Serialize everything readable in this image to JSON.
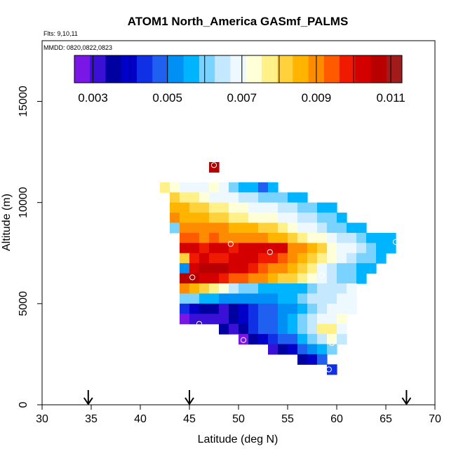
{
  "chart_data": {
    "type": "heatmap",
    "title": "ATOM1 North_America GASmf_PALMS",
    "flights_label": "Flts: 9,10,11",
    "dates_label": "MMDD: 0820,0822,0823",
    "xlabel": "Latitude (deg N)",
    "ylabel": "Altitude (m)",
    "xlim": [
      30,
      70
    ],
    "ylim": [
      0,
      18000
    ],
    "x_ticks": [
      "30",
      "35",
      "40",
      "45",
      "50",
      "55",
      "60",
      "65",
      "70"
    ],
    "y_ticks": [
      "0",
      "5000",
      "10000",
      "15000"
    ],
    "colorbar": {
      "min": 0.0025,
      "max": 0.0113,
      "tick_values": [
        0.003,
        0.005,
        0.007,
        0.009,
        0.011
      ],
      "tick_labels": [
        "0.003",
        "0.005",
        "0.007",
        "0.009",
        "0.011"
      ],
      "colors": [
        "#7a16e6",
        "#3a0fd6",
        "#0000a0",
        "#0000c8",
        "#1030e6",
        "#2060f0",
        "#0090f5",
        "#00b4ff",
        "#7ad2ff",
        "#c4e9ff",
        "#eef8ff",
        "#ffffd8",
        "#fff088",
        "#ffd23c",
        "#ffb400",
        "#ff8c00",
        "#ff5a00",
        "#f01a00",
        "#d40000",
        "#b80000",
        "#a01c1c"
      ]
    },
    "cell_size": {
      "lat": 1.0,
      "alt": 500
    },
    "grid_cells": [
      [
        47.5,
        11750,
        0.0106
      ],
      [
        42.5,
        10750,
        0.0076
      ],
      [
        43.5,
        10750,
        0.0072
      ],
      [
        44.5,
        10750,
        0.007
      ],
      [
        45.5,
        10750,
        0.0068
      ],
      [
        46.5,
        10750,
        0.007
      ],
      [
        47.5,
        10750,
        0.0075
      ],
      [
        48.5,
        10750,
        0.0068
      ],
      [
        49.5,
        10750,
        0.0062
      ],
      [
        50.5,
        10750,
        0.0057
      ],
      [
        51.5,
        10750,
        0.0055
      ],
      [
        52.5,
        10750,
        0.005
      ],
      [
        53.5,
        10750,
        0.0058
      ],
      [
        43.5,
        10250,
        0.0082
      ],
      [
        44.5,
        10250,
        0.0078
      ],
      [
        45.5,
        10250,
        0.0076
      ],
      [
        46.5,
        10250,
        0.0073
      ],
      [
        47.5,
        10250,
        0.0071
      ],
      [
        48.5,
        10250,
        0.0069
      ],
      [
        49.5,
        10250,
        0.0068
      ],
      [
        50.5,
        10250,
        0.0066
      ],
      [
        51.5,
        10250,
        0.0064
      ],
      [
        52.5,
        10250,
        0.0062
      ],
      [
        53.5,
        10250,
        0.0061
      ],
      [
        54.5,
        10250,
        0.0059
      ],
      [
        55.5,
        10250,
        0.0057
      ],
      [
        56.5,
        10250,
        0.0057
      ],
      [
        43.5,
        9750,
        0.0086
      ],
      [
        44.5,
        9750,
        0.0084
      ],
      [
        45.5,
        9750,
        0.0082
      ],
      [
        46.5,
        9750,
        0.008
      ],
      [
        47.5,
        9750,
        0.0078
      ],
      [
        48.5,
        9750,
        0.0076
      ],
      [
        49.5,
        9750,
        0.0074
      ],
      [
        50.5,
        9750,
        0.0072
      ],
      [
        51.5,
        9750,
        0.007
      ],
      [
        52.5,
        9750,
        0.0069
      ],
      [
        53.5,
        9750,
        0.0067
      ],
      [
        54.5,
        9750,
        0.0065
      ],
      [
        55.5,
        9750,
        0.0063
      ],
      [
        56.5,
        9750,
        0.0061
      ],
      [
        57.5,
        9750,
        0.006
      ],
      [
        58.5,
        9750,
        0.0058
      ],
      [
        59.5,
        9750,
        0.0056
      ],
      [
        43.5,
        9250,
        0.0088
      ],
      [
        44.5,
        9250,
        0.0087
      ],
      [
        45.5,
        9250,
        0.0085
      ],
      [
        46.5,
        9250,
        0.0084
      ],
      [
        47.5,
        9250,
        0.0082
      ],
      [
        48.5,
        9250,
        0.008
      ],
      [
        49.5,
        9250,
        0.0078
      ],
      [
        50.5,
        9250,
        0.0077
      ],
      [
        51.5,
        9250,
        0.0075
      ],
      [
        52.5,
        9250,
        0.0073
      ],
      [
        53.5,
        9250,
        0.0072
      ],
      [
        54.5,
        9250,
        0.007
      ],
      [
        55.5,
        9250,
        0.0068
      ],
      [
        56.5,
        9250,
        0.0066
      ],
      [
        57.5,
        9250,
        0.0064
      ],
      [
        58.5,
        9250,
        0.0062
      ],
      [
        59.5,
        9250,
        0.006
      ],
      [
        60.5,
        9250,
        0.0058
      ],
      [
        43.5,
        8750,
        0.006
      ],
      [
        44.5,
        8750,
        0.009
      ],
      [
        45.5,
        8750,
        0.0091
      ],
      [
        46.5,
        8750,
        0.009
      ],
      [
        47.5,
        8750,
        0.0089
      ],
      [
        48.5,
        8750,
        0.0088
      ],
      [
        49.5,
        8750,
        0.0087
      ],
      [
        50.5,
        8750,
        0.0086
      ],
      [
        51.5,
        8750,
        0.0085
      ],
      [
        52.5,
        8750,
        0.0082
      ],
      [
        53.5,
        8750,
        0.008
      ],
      [
        54.5,
        8750,
        0.0077
      ],
      [
        55.5,
        8750,
        0.0074
      ],
      [
        56.5,
        8750,
        0.0071
      ],
      [
        57.5,
        8750,
        0.0068
      ],
      [
        58.5,
        8750,
        0.0065
      ],
      [
        59.5,
        8750,
        0.0062
      ],
      [
        60.5,
        8750,
        0.0059
      ],
      [
        61.5,
        8750,
        0.0056
      ],
      [
        62.5,
        8750,
        0.0055
      ],
      [
        44.5,
        8250,
        0.0094
      ],
      [
        45.5,
        8250,
        0.0093
      ],
      [
        46.5,
        8250,
        0.0092
      ],
      [
        47.5,
        8250,
        0.0093
      ],
      [
        48.5,
        8250,
        0.0092
      ],
      [
        49.5,
        8250,
        0.0091
      ],
      [
        50.5,
        8250,
        0.009
      ],
      [
        51.5,
        8250,
        0.0089
      ],
      [
        52.5,
        8250,
        0.0088
      ],
      [
        53.5,
        8250,
        0.0086
      ],
      [
        54.5,
        8250,
        0.0084
      ],
      [
        55.5,
        8250,
        0.0081
      ],
      [
        56.5,
        8250,
        0.0078
      ],
      [
        57.5,
        8250,
        0.0075
      ],
      [
        58.5,
        8250,
        0.0072
      ],
      [
        59.5,
        8250,
        0.0069
      ],
      [
        60.5,
        8250,
        0.0066
      ],
      [
        61.5,
        8250,
        0.0063
      ],
      [
        62.5,
        8250,
        0.006
      ],
      [
        63.5,
        8250,
        0.0058
      ],
      [
        64.5,
        8250,
        0.0057
      ],
      [
        65.5,
        8250,
        0.0057
      ],
      [
        44.5,
        7750,
        0.0103
      ],
      [
        45.5,
        7750,
        0.0102
      ],
      [
        46.5,
        7750,
        0.01
      ],
      [
        47.5,
        7750,
        0.0102
      ],
      [
        48.5,
        7750,
        0.0101
      ],
      [
        49.5,
        7750,
        0.01
      ],
      [
        50.5,
        7750,
        0.0103
      ],
      [
        51.5,
        7750,
        0.0102
      ],
      [
        52.5,
        7750,
        0.0104
      ],
      [
        53.5,
        7750,
        0.0103
      ],
      [
        54.5,
        7750,
        0.0101
      ],
      [
        55.5,
        7750,
        0.0092
      ],
      [
        56.5,
        7750,
        0.0088
      ],
      [
        57.5,
        7750,
        0.0084
      ],
      [
        58.5,
        7750,
        0.008
      ],
      [
        59.5,
        7750,
        0.0075
      ],
      [
        60.5,
        7750,
        0.0071
      ],
      [
        61.5,
        7750,
        0.0067
      ],
      [
        62.5,
        7750,
        0.0063
      ],
      [
        63.5,
        7750,
        0.006
      ],
      [
        64.5,
        7750,
        0.0058
      ],
      [
        65.5,
        7750,
        0.0057
      ],
      [
        44.5,
        7250,
        0.008
      ],
      [
        45.5,
        7250,
        0.01
      ],
      [
        46.5,
        7250,
        0.0101
      ],
      [
        47.5,
        7250,
        0.01
      ],
      [
        48.5,
        7250,
        0.01
      ],
      [
        49.5,
        7250,
        0.0101
      ],
      [
        50.5,
        7250,
        0.0104
      ],
      [
        51.5,
        7250,
        0.0102
      ],
      [
        52.5,
        7250,
        0.01
      ],
      [
        53.5,
        7250,
        0.0098
      ],
      [
        54.5,
        7250,
        0.0095
      ],
      [
        55.5,
        7250,
        0.009
      ],
      [
        56.5,
        7250,
        0.0086
      ],
      [
        57.5,
        7250,
        0.0082
      ],
      [
        58.5,
        7250,
        0.0077
      ],
      [
        59.5,
        7250,
        0.0073
      ],
      [
        60.5,
        7250,
        0.0069
      ],
      [
        61.5,
        7250,
        0.0065
      ],
      [
        62.5,
        7250,
        0.0062
      ],
      [
        63.5,
        7250,
        0.0059
      ],
      [
        64.5,
        7250,
        0.0057
      ],
      [
        44.5,
        6750,
        0.0052
      ],
      [
        45.5,
        6750,
        0.0104
      ],
      [
        46.5,
        6750,
        0.0106
      ],
      [
        47.5,
        6750,
        0.0107
      ],
      [
        48.5,
        6750,
        0.0106
      ],
      [
        49.5,
        6750,
        0.0104
      ],
      [
        50.5,
        6750,
        0.0102
      ],
      [
        51.5,
        6750,
        0.01
      ],
      [
        52.5,
        6750,
        0.0096
      ],
      [
        53.5,
        6750,
        0.0092
      ],
      [
        54.5,
        6750,
        0.009
      ],
      [
        55.5,
        6750,
        0.0086
      ],
      [
        56.5,
        6750,
        0.0081
      ],
      [
        57.5,
        6750,
        0.0076
      ],
      [
        58.5,
        6750,
        0.0071
      ],
      [
        59.5,
        6750,
        0.0066
      ],
      [
        60.5,
        6750,
        0.0062
      ],
      [
        61.5,
        6750,
        0.0059
      ],
      [
        62.5,
        6750,
        0.0057
      ],
      [
        63.5,
        6750,
        0.0056
      ],
      [
        44.5,
        6250,
        0.0108
      ],
      [
        45.5,
        6250,
        0.0105
      ],
      [
        46.5,
        6250,
        0.0103
      ],
      [
        47.5,
        6250,
        0.0101
      ],
      [
        48.5,
        6250,
        0.0099
      ],
      [
        49.5,
        6250,
        0.0096
      ],
      [
        50.5,
        6250,
        0.0094
      ],
      [
        51.5,
        6250,
        0.0092
      ],
      [
        52.5,
        6250,
        0.0089
      ],
      [
        53.5,
        6250,
        0.0086
      ],
      [
        54.5,
        6250,
        0.0083
      ],
      [
        55.5,
        6250,
        0.008
      ],
      [
        56.5,
        6250,
        0.0076
      ],
      [
        57.5,
        6250,
        0.0072
      ],
      [
        58.5,
        6250,
        0.0068
      ],
      [
        59.5,
        6250,
        0.0065
      ],
      [
        60.5,
        6250,
        0.0062
      ],
      [
        61.5,
        6250,
        0.006
      ],
      [
        62.5,
        6250,
        0.0058
      ],
      [
        44.5,
        5750,
        0.009
      ],
      [
        45.5,
        5750,
        0.0087
      ],
      [
        46.5,
        5750,
        0.0083
      ],
      [
        47.5,
        5750,
        0.0078
      ],
      [
        48.5,
        5750,
        0.0072
      ],
      [
        49.5,
        5750,
        0.0066
      ],
      [
        50.5,
        5750,
        0.0062
      ],
      [
        51.5,
        5750,
        0.0059
      ],
      [
        52.5,
        5750,
        0.0058
      ],
      [
        53.5,
        5750,
        0.0056
      ],
      [
        54.5,
        5750,
        0.0055
      ],
      [
        55.5,
        5750,
        0.0056
      ],
      [
        56.5,
        5750,
        0.0058
      ],
      [
        57.5,
        5750,
        0.0061
      ],
      [
        58.5,
        5750,
        0.0063
      ],
      [
        59.5,
        5750,
        0.0064
      ],
      [
        60.5,
        5750,
        0.0066
      ],
      [
        61.5,
        5750,
        0.0067
      ],
      [
        44.5,
        5250,
        0.0061
      ],
      [
        45.5,
        5250,
        0.0059
      ],
      [
        46.5,
        5250,
        0.0057
      ],
      [
        47.5,
        5250,
        0.0055
      ],
      [
        48.5,
        5250,
        0.0054
      ],
      [
        49.5,
        5250,
        0.0053
      ],
      [
        50.5,
        5250,
        0.0052
      ],
      [
        51.5,
        5250,
        0.0051
      ],
      [
        52.5,
        5250,
        0.0052
      ],
      [
        53.5,
        5250,
        0.0054
      ],
      [
        54.5,
        5250,
        0.0056
      ],
      [
        55.5,
        5250,
        0.0058
      ],
      [
        56.5,
        5250,
        0.0061
      ],
      [
        57.5,
        5250,
        0.0063
      ],
      [
        58.5,
        5250,
        0.0065
      ],
      [
        59.5,
        5250,
        0.0066
      ],
      [
        60.5,
        5250,
        0.0068
      ],
      [
        61.5,
        5250,
        0.0069
      ],
      [
        44.5,
        4750,
        0.0044
      ],
      [
        45.5,
        4750,
        0.0041
      ],
      [
        46.5,
        4750,
        0.0037
      ],
      [
        47.5,
        4750,
        0.0034
      ],
      [
        48.5,
        4750,
        0.0033
      ],
      [
        49.5,
        4750,
        0.0035
      ],
      [
        50.5,
        4750,
        0.004
      ],
      [
        51.5,
        4750,
        0.0044
      ],
      [
        52.5,
        4750,
        0.0047
      ],
      [
        53.5,
        4750,
        0.0049
      ],
      [
        54.5,
        4750,
        0.0051
      ],
      [
        55.5,
        4750,
        0.0054
      ],
      [
        56.5,
        4750,
        0.0058
      ],
      [
        57.5,
        4750,
        0.0062
      ],
      [
        58.5,
        4750,
        0.0065
      ],
      [
        59.5,
        4750,
        0.0067
      ],
      [
        60.5,
        4750,
        0.0069
      ],
      [
        61.5,
        4750,
        0.007
      ],
      [
        44.5,
        4250,
        0.0027
      ],
      [
        45.5,
        4250,
        0.0031
      ],
      [
        46.5,
        4250,
        0.0032
      ],
      [
        47.5,
        4250,
        0.0033
      ],
      [
        48.5,
        4250,
        0.0032
      ],
      [
        49.5,
        4250,
        0.0034
      ],
      [
        50.5,
        4250,
        0.0038
      ],
      [
        51.5,
        4250,
        0.0043
      ],
      [
        52.5,
        4250,
        0.0046
      ],
      [
        53.5,
        4250,
        0.0049
      ],
      [
        54.5,
        4250,
        0.0051
      ],
      [
        55.5,
        4250,
        0.0055
      ],
      [
        56.5,
        4250,
        0.0059
      ],
      [
        57.5,
        4250,
        0.0064
      ],
      [
        58.5,
        4250,
        0.0068
      ],
      [
        59.5,
        4250,
        0.0069
      ],
      [
        60.5,
        4250,
        0.0072
      ],
      [
        48.5,
        3750,
        0.0036
      ],
      [
        49.5,
        3750,
        0.0033
      ],
      [
        50.5,
        3750,
        0.0036
      ],
      [
        51.5,
        3750,
        0.0042
      ],
      [
        52.5,
        3750,
        0.0046
      ],
      [
        53.5,
        3750,
        0.005
      ],
      [
        54.5,
        3750,
        0.0053
      ],
      [
        55.5,
        3750,
        0.0057
      ],
      [
        56.5,
        3750,
        0.0061
      ],
      [
        57.5,
        3750,
        0.0066
      ],
      [
        58.5,
        3750,
        0.0076
      ],
      [
        59.5,
        3750,
        0.0078
      ],
      [
        60.5,
        3750,
        0.0068
      ],
      [
        50.5,
        3250,
        0.0028
      ],
      [
        51.5,
        3250,
        0.0034
      ],
      [
        52.5,
        3250,
        0.0038
      ],
      [
        53.5,
        3250,
        0.0042
      ],
      [
        54.5,
        3250,
        0.0046
      ],
      [
        55.5,
        3250,
        0.005
      ],
      [
        56.5,
        3250,
        0.0055
      ],
      [
        57.5,
        3250,
        0.006
      ],
      [
        58.5,
        3250,
        0.0066
      ],
      [
        59.5,
        3250,
        0.0075
      ],
      [
        60.5,
        3250,
        0.0065
      ],
      [
        53.5,
        2750,
        0.0032
      ],
      [
        54.5,
        2750,
        0.0036
      ],
      [
        55.5,
        2750,
        0.0041
      ],
      [
        56.5,
        2750,
        0.0046
      ],
      [
        57.5,
        2750,
        0.0051
      ],
      [
        58.5,
        2750,
        0.0056
      ],
      [
        59.5,
        2750,
        0.006
      ],
      [
        56.5,
        2250,
        0.0034
      ],
      [
        57.5,
        2250,
        0.0041
      ],
      [
        58.5,
        2250,
        0.0046
      ],
      [
        59.5,
        1750,
        0.0042
      ]
    ],
    "markers": [
      [
        47.5,
        11850
      ],
      [
        51.8,
        11450
      ],
      [
        49.2,
        7950
      ],
      [
        53.2,
        7550
      ],
      [
        45.3,
        6300
      ],
      [
        58.5,
        6400
      ],
      [
        66.0,
        8050
      ],
      [
        46.0,
        4000
      ],
      [
        50.5,
        3200
      ],
      [
        59.5,
        3050
      ],
      [
        59.2,
        1750
      ]
    ],
    "arrows_lat": [
      34.7,
      45.0,
      67.1
    ]
  }
}
